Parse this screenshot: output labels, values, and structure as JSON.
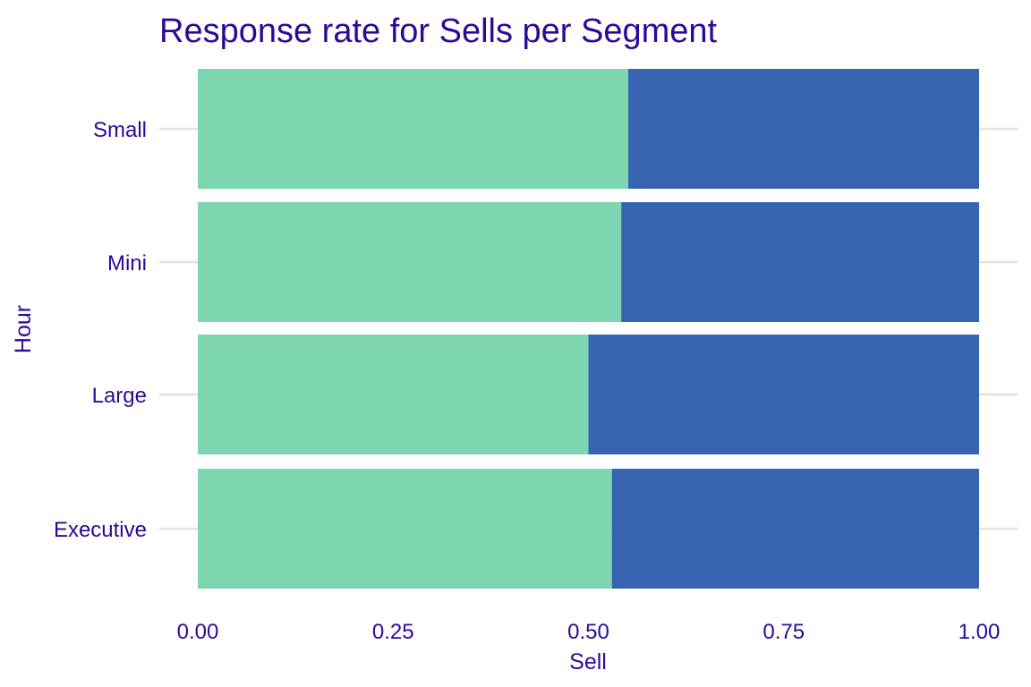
{
  "chart_data": {
    "type": "bar",
    "orientation": "horizontal",
    "stacked": "proportional",
    "title": "Response rate for Sells per Segment",
    "xlabel": "Sell",
    "ylabel": "Hour",
    "xlim": [
      0,
      1
    ],
    "xticks": [
      "0.00",
      "0.25",
      "0.50",
      "0.75",
      "1.00"
    ],
    "categories": [
      "Executive",
      "Large",
      "Mini",
      "Small"
    ],
    "series": [
      {
        "values": [
          0.53,
          0.5,
          0.542,
          0.551
        ],
        "color": "#7dd6af"
      },
      {
        "values": [
          0.47,
          0.5,
          0.458,
          0.449
        ],
        "color": "#3664b0"
      }
    ],
    "grid": true,
    "legend": "none",
    "text_color": "#2c0a96"
  }
}
